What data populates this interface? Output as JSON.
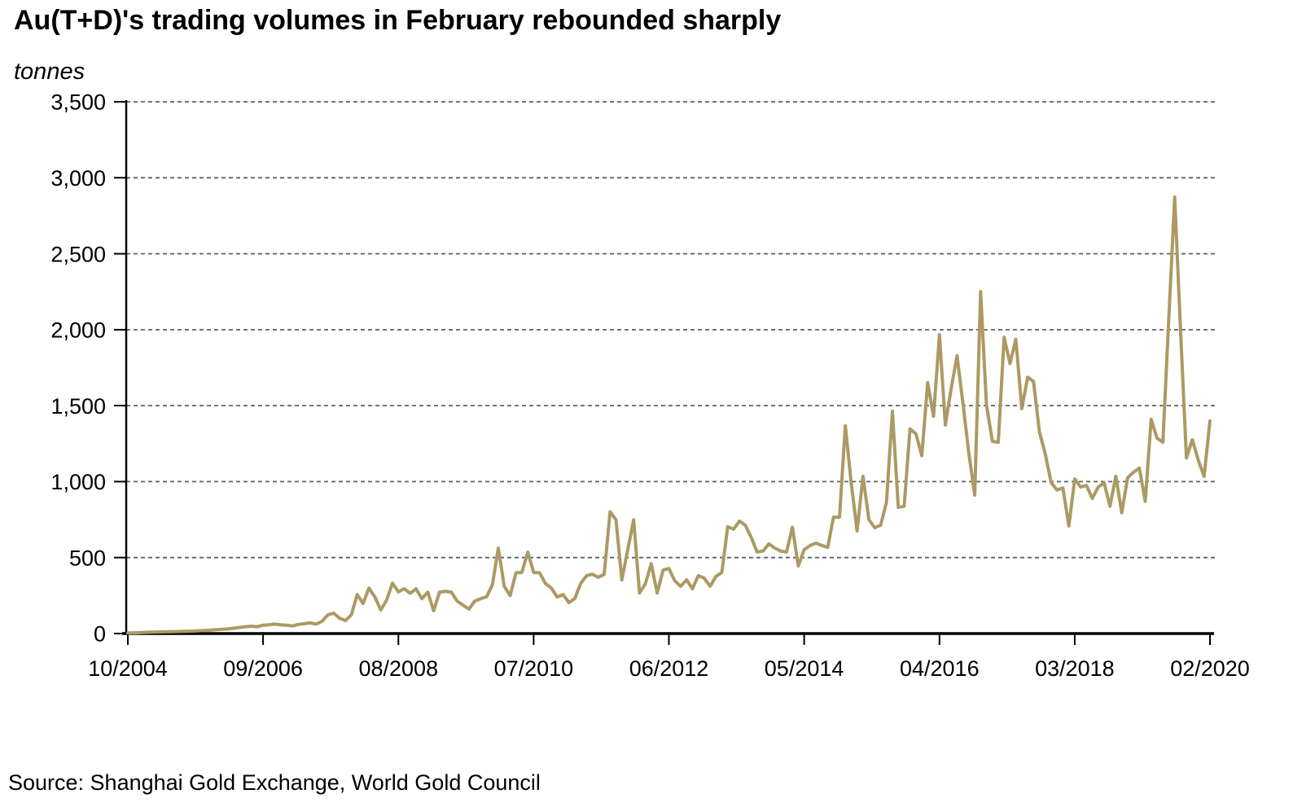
{
  "title": "Au(T+D)'s trading volumes in February rebounded sharply",
  "y_unit_label": "tonnes",
  "source": "Source: Shanghai Gold Exchange, World Gold Council",
  "chart_data": {
    "type": "line",
    "series_name": "Au(T+D) monthly trading volume",
    "x_start": "10/2004",
    "x_end": "02/2020",
    "x_frequency": "monthly",
    "x_tick_labels": [
      "10/2004",
      "09/2006",
      "08/2008",
      "07/2010",
      "06/2012",
      "05/2014",
      "04/2016",
      "03/2018",
      "02/2020"
    ],
    "y_tick_labels": [
      "0",
      "500",
      "1,000",
      "1,500",
      "2,000",
      "2,500",
      "3,000",
      "3,500"
    ],
    "ylim": [
      0,
      3500
    ],
    "y_tick_step": 500,
    "grid": "horizontal-dashed",
    "legend": "none",
    "line_color": "#AC9A64",
    "grid_color": "#606060",
    "axis_color": "#000000",
    "values": [
      4,
      5,
      6,
      8,
      9,
      10,
      11,
      12,
      13,
      14,
      15,
      16,
      18,
      20,
      22,
      25,
      28,
      30,
      35,
      40,
      45,
      48,
      45,
      55,
      58,
      62,
      58,
      55,
      50,
      60,
      65,
      70,
      62,
      80,
      123,
      134,
      100,
      86,
      123,
      257,
      198,
      299,
      241,
      155,
      220,
      332,
      275,
      295,
      265,
      295,
      230,
      273,
      150,
      273,
      278,
      273,
      214,
      187,
      161,
      214,
      230,
      241,
      322,
      563,
      311,
      250,
      400,
      402,
      536,
      402,
      400,
      330,
      300,
      241,
      257,
      204,
      230,
      330,
      381,
      391,
      370,
      390,
      802,
      749,
      353,
      551,
      749,
      267,
      327,
      460,
      267,
      417,
      428,
      348,
      311,
      354,
      295,
      381,
      365,
      311,
      376,
      402,
      703,
      687,
      740,
      713,
      633,
      537,
      543,
      590,
      563,
      543,
      537,
      700,
      445,
      552,
      579,
      595,
      580,
      567,
      766,
      766,
      1367,
      992,
      676,
      1035,
      750,
      697,
      713,
      863,
      1464,
      831,
      838,
      1347,
      1314,
      1170,
      1652,
      1430,
      1967,
      1372,
      1614,
      1828,
      1517,
      1185,
      911,
      2251,
      1506,
      1265,
      1259,
      1950,
      1777,
      1937,
      1480,
      1687,
      1659,
      1329,
      1180,
      993,
      945,
      958,
      708,
      1018,
      964,
      975,
      890,
      964,
      992,
      838,
      1035,
      795,
      1026,
      1062,
      1089,
      870,
      1410,
      1286,
      1259,
      2070,
      2873,
      1990,
      1155,
      1276,
      1142,
      1034,
      1399
    ]
  }
}
